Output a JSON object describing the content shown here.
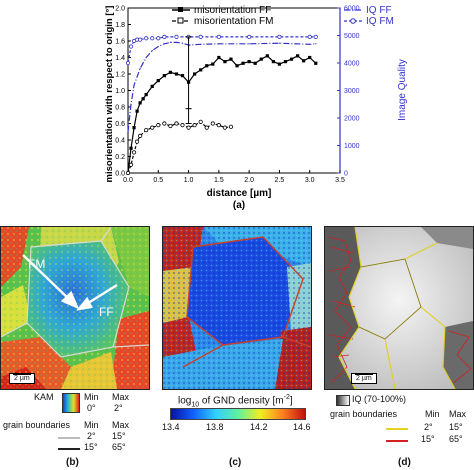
{
  "figure": {
    "top_chart": {
      "panel_label": "(a)",
      "legend": {
        "misorientation_ff": "misorientation FF",
        "misorientation_fm": "misorientation FM",
        "iq_ff": "IQ FF",
        "iq_fm": "IQ FM"
      }
    },
    "panel_b": {
      "label": "(b)",
      "annot_fm": "FM",
      "annot_ff": "FF",
      "scale_bar": "2 µm",
      "kam_title": "KAM",
      "kam_min_label": "Min",
      "kam_max_label": "Max",
      "kam_min": "0°",
      "kam_max": "2°",
      "gb_title": "grain boundaries",
      "gb_min_label": "Min",
      "gb_max_label": "Max",
      "gb_row1_min": "2°",
      "gb_row1_max": "15°",
      "gb_row2_min": "15°",
      "gb_row2_max": "65°"
    },
    "panel_c": {
      "label": "(c)",
      "colorbar_title": "log10 of GND density [m-2]",
      "title_pre": "log",
      "title_sub": "10",
      "title_mid": " of GND density [m",
      "title_sup": "-2",
      "title_post": "]",
      "ticks": [
        "13.4",
        "13.8",
        "14.2",
        "14.6"
      ]
    },
    "panel_d": {
      "label": "(d)",
      "scale_bar": "2 µm",
      "iq_legend": "IQ (70-100%)",
      "gb_title": "grain boundaries",
      "gb_min_label": "Min",
      "gb_max_label": "Max",
      "gb_row1_min": "2°",
      "gb_row1_max": "15°",
      "gb_row2_min": "15°",
      "gb_row2_max": "65°"
    }
  },
  "chart_data": {
    "type": "line",
    "title": "",
    "xlabel": "distance [µm]",
    "ylabel": "misorientation with respect to origin [°]",
    "y2label": "Image Quality",
    "xlim": [
      0,
      3.5
    ],
    "ylim": [
      0,
      2.0
    ],
    "y2lim": [
      0,
      6000
    ],
    "x_ticks": [
      0.0,
      0.5,
      1.0,
      1.5,
      2.0,
      2.5,
      3.0,
      3.5
    ],
    "x_tick_labels": [
      "0.0",
      "0.5",
      "1.0",
      "1.5",
      "2.0",
      "2.5",
      "3.0",
      "3.5"
    ],
    "y_ticks": [
      0.0,
      0.2,
      0.4,
      0.6,
      0.8,
      1.0,
      1.2,
      1.4,
      1.6,
      1.8,
      2.0
    ],
    "y_tick_labels": [
      "0.0",
      "0.2",
      "0.4",
      "0.6",
      "0.8",
      "1.0",
      "1.2",
      "1.4",
      "1.6",
      "1.8",
      "2.0"
    ],
    "y2_ticks": [
      0,
      1000,
      2000,
      3000,
      4000,
      5000,
      6000
    ],
    "y2_tick_labels": [
      "0",
      "1000",
      "2000",
      "3000",
      "4000",
      "5000",
      "6000"
    ],
    "grid": false,
    "legend_position": "top",
    "colors": {
      "misorientation": "#000000",
      "iq": "#3333cc"
    },
    "series": [
      {
        "name": "misorientation FF",
        "axis": "left",
        "style": "solid-markers",
        "x": [
          0.0,
          0.05,
          0.1,
          0.15,
          0.2,
          0.25,
          0.3,
          0.4,
          0.5,
          0.6,
          0.7,
          0.8,
          0.9,
          1.0,
          1.1,
          1.2,
          1.3,
          1.4,
          1.5,
          1.6,
          1.7,
          1.8,
          1.9,
          2.0,
          2.1,
          2.2,
          2.3,
          2.4,
          2.5,
          2.6,
          2.7,
          2.8,
          2.9,
          3.0,
          3.1
        ],
        "y": [
          0.0,
          0.3,
          0.55,
          0.75,
          0.85,
          0.9,
          0.95,
          1.05,
          1.12,
          1.18,
          1.22,
          1.2,
          1.18,
          1.1,
          1.2,
          1.25,
          1.3,
          1.32,
          1.4,
          1.35,
          1.38,
          1.3,
          1.33,
          1.35,
          1.33,
          1.38,
          1.42,
          1.35,
          1.32,
          1.35,
          1.38,
          1.42,
          1.36,
          1.4,
          1.33
        ]
      },
      {
        "name": "misorientation FM",
        "axis": "left",
        "style": "dashed-open-markers",
        "x": [
          0.0,
          0.05,
          0.1,
          0.15,
          0.2,
          0.3,
          0.4,
          0.5,
          0.6,
          0.7,
          0.8,
          0.9,
          1.0,
          1.1,
          1.2,
          1.3,
          1.4,
          1.5,
          1.6,
          1.7
        ],
        "y": [
          0.0,
          0.1,
          0.25,
          0.38,
          0.45,
          0.52,
          0.55,
          0.58,
          0.6,
          0.57,
          0.6,
          0.58,
          0.55,
          0.58,
          0.62,
          0.55,
          0.6,
          0.58,
          0.55,
          0.56
        ]
      },
      {
        "name": "IQ FF",
        "axis": "right",
        "style": "dash-dot",
        "x": [
          0.0,
          0.05,
          0.1,
          0.2,
          0.3,
          0.4,
          0.5,
          0.6,
          0.7,
          0.8,
          0.9,
          1.0,
          1.2,
          1.5,
          2.0,
          2.5,
          3.0,
          3.1
        ],
        "y": [
          1500,
          2500,
          3200,
          3800,
          4200,
          4450,
          4600,
          4700,
          4750,
          4750,
          4720,
          4650,
          4680,
          4700,
          4700,
          4720,
          4680,
          4700
        ]
      },
      {
        "name": "IQ FM",
        "axis": "right",
        "style": "dashed-open-markers",
        "x": [
          0.0,
          0.05,
          0.1,
          0.15,
          0.2,
          0.3,
          0.4,
          0.5,
          0.6,
          0.8,
          1.0,
          1.2,
          1.5,
          2.0,
          2.5,
          3.0,
          3.1
        ],
        "y": [
          4000,
          4600,
          4800,
          4850,
          4850,
          4900,
          4900,
          4900,
          4950,
          4950,
          4950,
          4950,
          4950,
          4950,
          4950,
          4950,
          4950
        ]
      }
    ]
  }
}
